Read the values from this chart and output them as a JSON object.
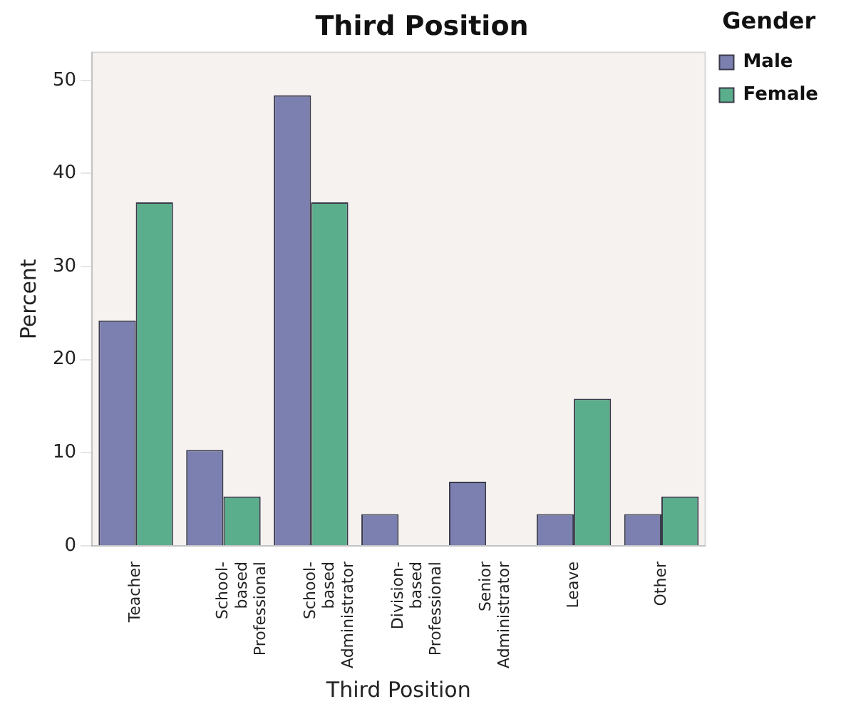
{
  "chart_data": {
    "type": "bar",
    "title": "Third Position",
    "xlabel": "Third Position",
    "ylabel": "Percent",
    "legend_title": "Gender",
    "categories": [
      "Teacher",
      "School-based Professional",
      "School-based Administrator",
      "Division-based Professional",
      "Senior Administrator",
      "Leave",
      "Other"
    ],
    "series": [
      {
        "name": "Male",
        "color": "#7b80b0",
        "values": [
          24.2,
          10.3,
          48.4,
          3.4,
          6.9,
          3.4,
          3.4
        ]
      },
      {
        "name": "Female",
        "color": "#5aae8c",
        "values": [
          36.9,
          5.3,
          36.9,
          0,
          0,
          15.8,
          5.3
        ]
      }
    ],
    "ylim": [
      0,
      53
    ],
    "yticks": [
      0,
      10,
      20,
      30,
      40,
      50
    ],
    "grid": false,
    "legend": "top right"
  }
}
